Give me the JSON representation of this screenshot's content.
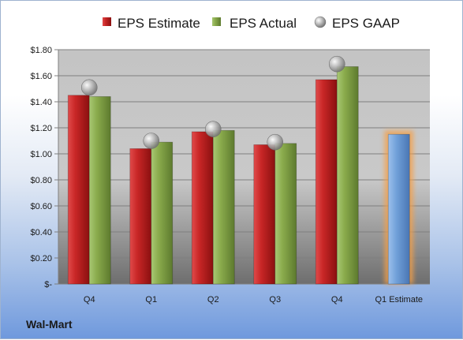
{
  "company": "Wal-Mart",
  "chart_data": {
    "type": "bar",
    "categories": [
      "Q4",
      "Q1",
      "Q2",
      "Q3",
      "Q4",
      "Q1 Estimate"
    ],
    "series": [
      {
        "name": "EPS Estimate",
        "color": "#c0282a",
        "values": [
          1.45,
          1.04,
          1.17,
          1.07,
          1.57,
          null
        ]
      },
      {
        "name": "EPS Actual",
        "color": "#8cac4f",
        "values": [
          1.44,
          1.09,
          1.18,
          1.08,
          1.67,
          null
        ]
      },
      {
        "name": "EPS GAAP",
        "color": "#a8a8a8",
        "marker": "sphere",
        "values": [
          1.51,
          1.1,
          1.19,
          1.09,
          1.69,
          null
        ]
      },
      {
        "name": "",
        "color": "#6f9fd8",
        "highlight": "#f4a04a",
        "values": [
          null,
          null,
          null,
          null,
          null,
          1.15
        ]
      }
    ],
    "ylim": [
      0,
      1.8
    ],
    "yticks": [
      {
        "value": 0,
        "label": "$-"
      },
      {
        "value": 0.2,
        "label": "$0.20"
      },
      {
        "value": 0.4,
        "label": "$0.40"
      },
      {
        "value": 0.6,
        "label": "$0.60"
      },
      {
        "value": 0.8,
        "label": "$0.80"
      },
      {
        "value": 1.0,
        "label": "$1.00"
      },
      {
        "value": 1.2,
        "label": "$1.20"
      },
      {
        "value": 1.4,
        "label": "$1.40"
      },
      {
        "value": 1.6,
        "label": "$1.60"
      },
      {
        "value": 1.8,
        "label": "$1.80"
      }
    ],
    "grid": true,
    "legend_position": "top"
  }
}
